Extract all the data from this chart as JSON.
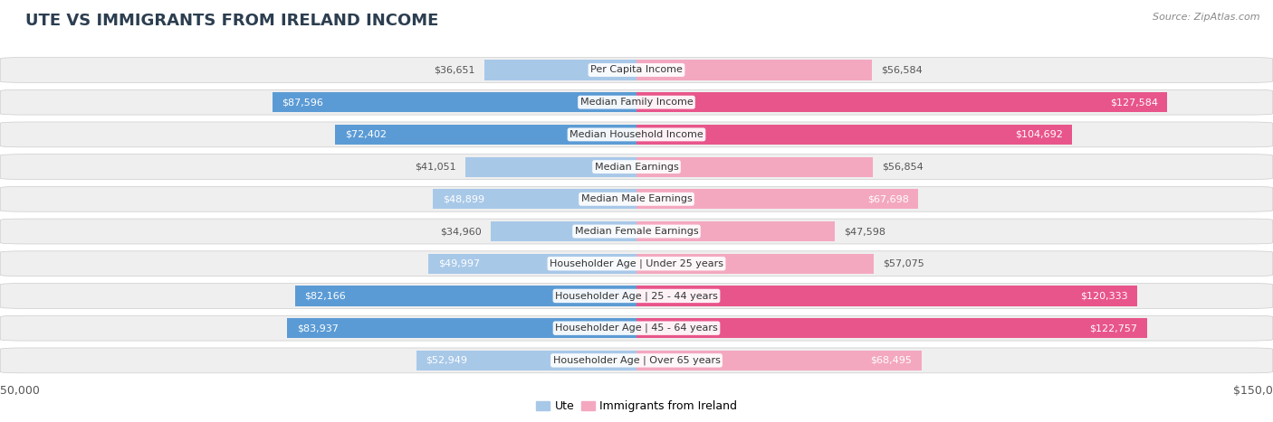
{
  "title": "UTE VS IMMIGRANTS FROM IRELAND INCOME",
  "source": "Source: ZipAtlas.com",
  "categories": [
    "Per Capita Income",
    "Median Family Income",
    "Median Household Income",
    "Median Earnings",
    "Median Male Earnings",
    "Median Female Earnings",
    "Householder Age | Under 25 years",
    "Householder Age | 25 - 44 years",
    "Householder Age | 45 - 64 years",
    "Householder Age | Over 65 years"
  ],
  "ute_values": [
    36651,
    87596,
    72402,
    41051,
    48899,
    34960,
    49997,
    82166,
    83937,
    52949
  ],
  "ireland_values": [
    56584,
    127584,
    104692,
    56854,
    67698,
    47598,
    57075,
    120333,
    122757,
    68495
  ],
  "ute_color_light": "#A8C8E8",
  "ute_color_dark": "#5B9BD5",
  "ireland_color_light": "#F4A8C0",
  "ireland_color_dark": "#E8558A",
  "max_value": 150000,
  "bar_height": 0.62,
  "row_bg_color": "#EFEFEF",
  "bg_color": "#FFFFFF",
  "label_ute": "Ute",
  "label_ireland": "Immigrants from Ireland",
  "title_fontsize": 13,
  "label_fontsize": 8.5,
  "value_fontsize": 8,
  "cat_fontsize": 8
}
